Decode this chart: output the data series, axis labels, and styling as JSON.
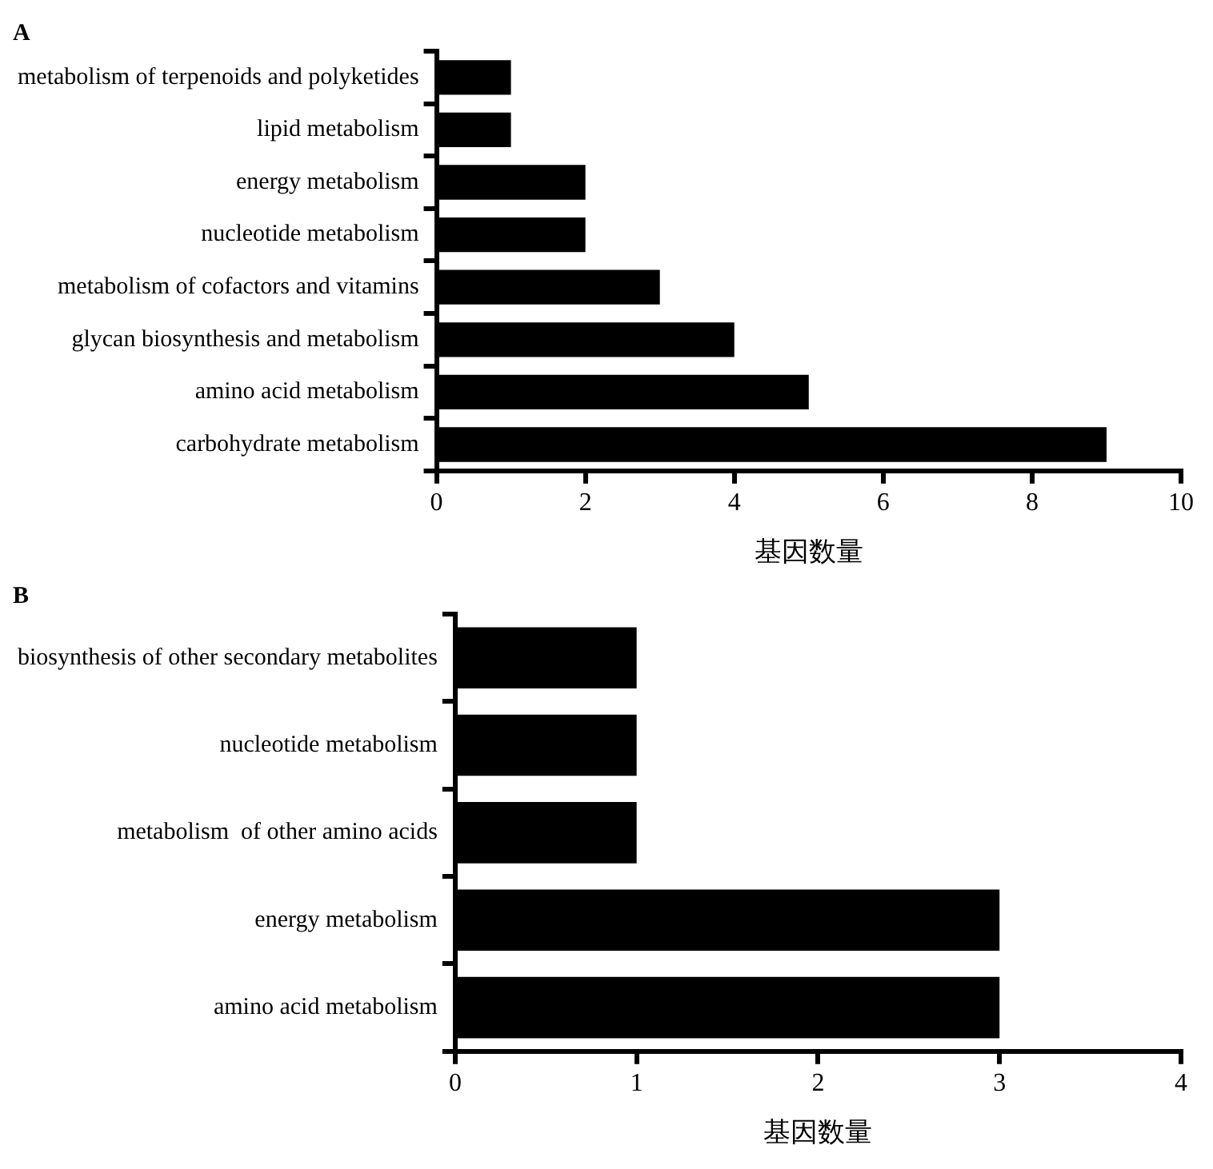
{
  "chart_data": [
    {
      "type": "bar",
      "orientation": "horizontal",
      "title": "A",
      "xlabel": "基因数量",
      "categories": [
        "metabolism of terpenoids and polyketides",
        "lipid metabolism",
        "energy metabolism",
        "nucleotide metabolism",
        "metabolism of cofactors and vitamins",
        "glycan biosynthesis and metabolism",
        "amino acid metabolism",
        "carbohydrate metabolism"
      ],
      "values": [
        1,
        1,
        2,
        2,
        3,
        4,
        5,
        9
      ],
      "color": "#000000",
      "xlim": [
        0,
        10
      ],
      "xticks": [
        0,
        2,
        4,
        6,
        8,
        10
      ],
      "grid": false
    },
    {
      "type": "bar",
      "orientation": "horizontal",
      "title": "B",
      "xlabel": "基因数量",
      "categories": [
        "biosynthesis of other secondary metabolites",
        "nucleotide metabolism",
        "metabolism  of other amino acids",
        "energy metabolism",
        "amino acid metabolism"
      ],
      "values": [
        1,
        1,
        1,
        3,
        3
      ],
      "color": "#000000",
      "xlim": [
        0,
        4
      ],
      "xticks": [
        0,
        1,
        2,
        3,
        4
      ],
      "grid": false
    }
  ]
}
